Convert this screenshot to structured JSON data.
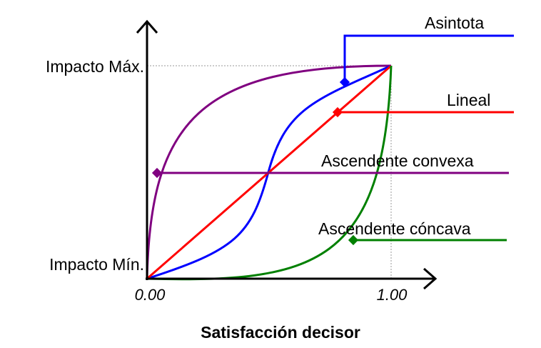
{
  "chart_data": {
    "type": "line",
    "xlabel": "Satisfacción decisor",
    "x_ticks": [
      "0.00",
      "1.00"
    ],
    "xlim": [
      0,
      1
    ],
    "y_ticks": [
      "Impacto Mín.",
      "Impacto Máx."
    ],
    "grid": false,
    "series": [
      {
        "name": "Asintota",
        "color": "#0000ff",
        "shape": "s-curve"
      },
      {
        "name": "Lineal",
        "color": "#ff0000",
        "shape": "linear"
      },
      {
        "name": "Ascendente convexa",
        "color": "#800080",
        "shape": "rapid-rise-then-plateau"
      },
      {
        "name": "Ascendente cóncava",
        "color": "#008000",
        "shape": "flat-then-rapid-rise"
      }
    ]
  }
}
